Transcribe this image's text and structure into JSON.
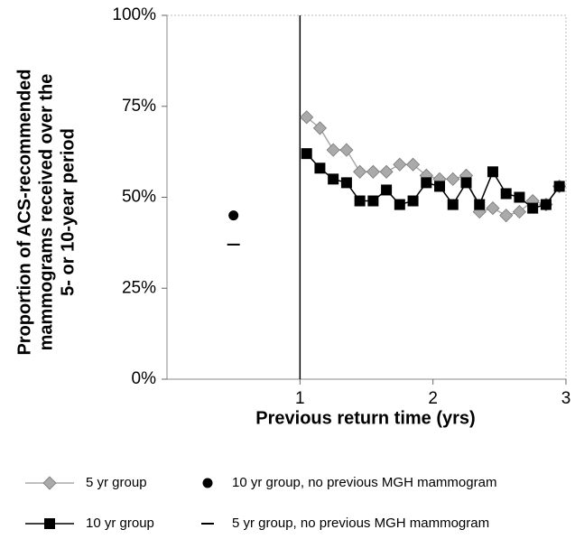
{
  "chart_data": {
    "type": "line",
    "y_label": [
      "Proportion of ACS-recommended",
      "mammograms received over the",
      "5- or 10-year period"
    ],
    "x_label": "Previous return time (yrs)",
    "xlim": [
      0,
      3
    ],
    "xticks": [
      1,
      2,
      3
    ],
    "ylim": [
      0,
      100
    ],
    "yticks": [
      {
        "value": 0,
        "label": "0%"
      },
      {
        "value": 25,
        "label": "25%"
      },
      {
        "value": 50,
        "label": "50%"
      },
      {
        "value": 75,
        "label": "75%"
      },
      {
        "value": 100,
        "label": "100%"
      }
    ],
    "vline": 1,
    "legend": "bottom",
    "series": [
      {
        "name": "5 yr group",
        "color": "#aaaaaa",
        "marker": "diamond",
        "line": true,
        "x": [
          1.05,
          1.15,
          1.25,
          1.35,
          1.45,
          1.55,
          1.65,
          1.75,
          1.85,
          1.95,
          2.05,
          2.15,
          2.25,
          2.35,
          2.45,
          2.55,
          2.65,
          2.75,
          2.85,
          2.95
        ],
        "values": [
          72,
          69,
          63,
          63,
          57,
          57,
          57,
          59,
          59,
          56,
          55,
          55,
          56,
          46,
          47,
          45,
          46,
          49,
          48,
          53
        ]
      },
      {
        "name": "10 yr group",
        "color": "#000000",
        "marker": "square",
        "line": true,
        "x": [
          1.05,
          1.15,
          1.25,
          1.35,
          1.45,
          1.55,
          1.65,
          1.75,
          1.85,
          1.95,
          2.05,
          2.15,
          2.25,
          2.35,
          2.45,
          2.55,
          2.65,
          2.75,
          2.85,
          2.95
        ],
        "values": [
          62,
          58,
          55,
          54,
          49,
          49,
          52,
          48,
          49,
          54,
          53,
          48,
          54,
          48,
          57,
          51,
          50,
          47,
          48,
          53
        ]
      },
      {
        "name": "10 yr group, no previous MGH mammogram",
        "color": "#000000",
        "marker": "circle",
        "line": false,
        "x": [
          0.5
        ],
        "values": [
          45
        ]
      },
      {
        "name": "5 yr group, no previous MGH mammogram",
        "color": "#000000",
        "marker": "dash",
        "line": false,
        "x": [
          0.5
        ],
        "values": [
          37
        ]
      }
    ]
  }
}
